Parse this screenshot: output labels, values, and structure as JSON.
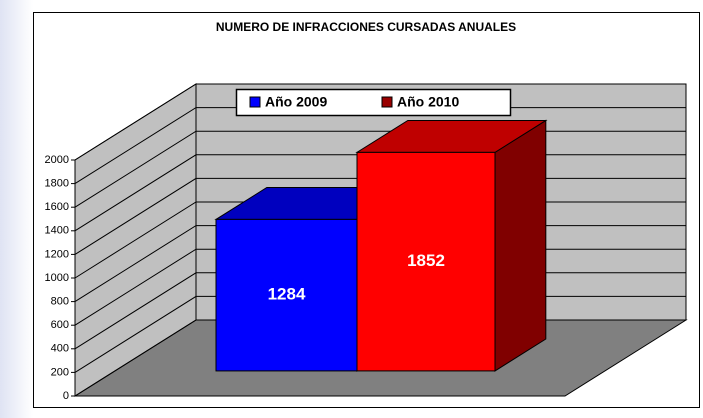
{
  "chart_data": {
    "type": "bar3d",
    "title": "NUMERO DE INFRACCIONES CURSADAS ANUALES",
    "series": [
      {
        "name": "Año 2009",
        "color": "#0000ff",
        "values": [
          1284
        ]
      },
      {
        "name": "Año 2010",
        "color": "#ff0000",
        "values": [
          1852
        ]
      }
    ],
    "ylim": [
      0,
      2000
    ],
    "yticks": [
      0,
      200,
      400,
      600,
      800,
      1000,
      1200,
      1400,
      1600,
      1800,
      2000
    ],
    "grid": true,
    "legend": "top"
  }
}
